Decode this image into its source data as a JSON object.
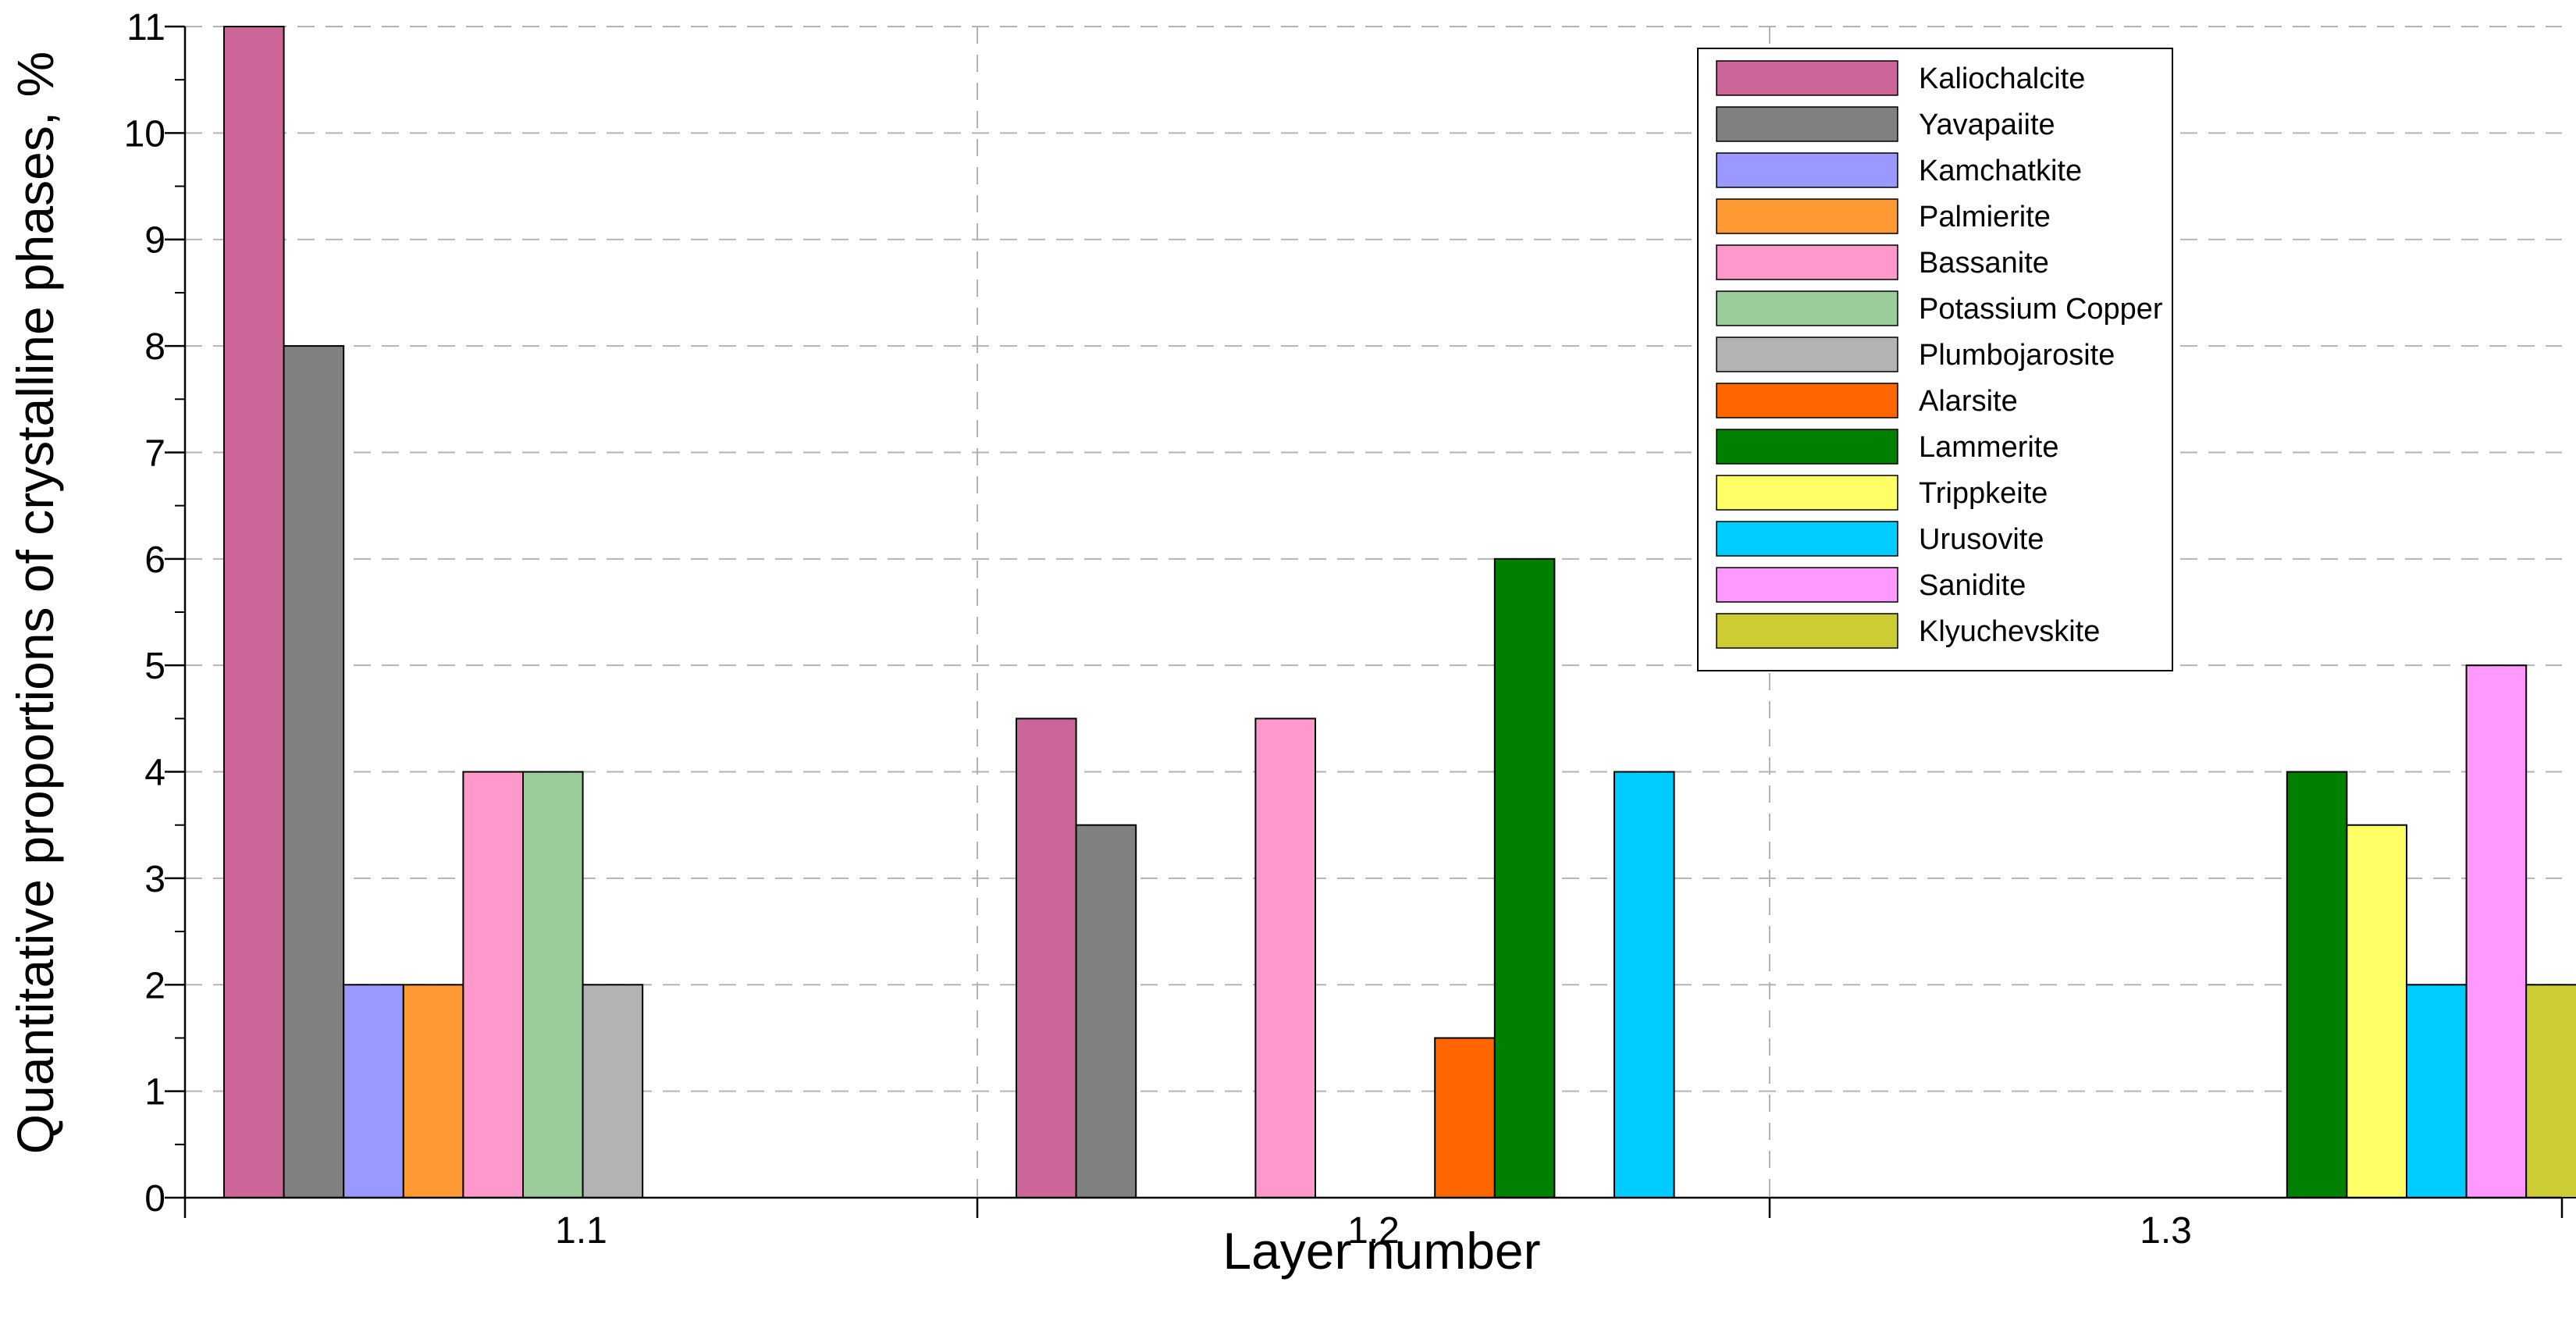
{
  "chart_data": {
    "type": "bar",
    "xlabel": "Layer number",
    "ylabel": "Quantitative proportions of crystalline phases, %",
    "ylim": [
      0,
      11
    ],
    "yticks": [
      0,
      1,
      2,
      3,
      4,
      5,
      6,
      7,
      8,
      9,
      10,
      11
    ],
    "categories": [
      "1.1",
      "1.2",
      "1.3"
    ],
    "grid": "dashed, both axes",
    "legend_position": "top-right",
    "series": [
      {
        "name": "Kaliochalcite",
        "color": "#CC6699",
        "values": [
          11,
          4.5,
          null
        ]
      },
      {
        "name": "Yavapaiite",
        "color": "#808080",
        "values": [
          8,
          3.5,
          null
        ]
      },
      {
        "name": "Kamchatkite",
        "color": "#9999FF",
        "values": [
          2,
          null,
          null
        ]
      },
      {
        "name": "Palmierite",
        "color": "#FF9933",
        "values": [
          2,
          null,
          null
        ]
      },
      {
        "name": "Bassanite",
        "color": "#FF99CC",
        "values": [
          4,
          4.5,
          null
        ]
      },
      {
        "name": "Potassium Copper",
        "color": "#99CC99",
        "values": [
          4,
          null,
          null
        ]
      },
      {
        "name": "Plumbojarosite",
        "color": "#B3B3B3",
        "values": [
          2,
          null,
          null
        ]
      },
      {
        "name": "Alarsite",
        "color": "#FF6600",
        "values": [
          null,
          1.5,
          null
        ]
      },
      {
        "name": "Lammerite",
        "color": "#008000",
        "values": [
          null,
          6,
          4
        ]
      },
      {
        "name": "Trippkeite",
        "color": "#FFFF66",
        "values": [
          null,
          null,
          3.5
        ]
      },
      {
        "name": "Urusovite",
        "color": "#00CCFF",
        "values": [
          null,
          4,
          2
        ]
      },
      {
        "name": "Sanidite",
        "color": "#FF99FF",
        "values": [
          null,
          null,
          5
        ]
      },
      {
        "name": "Klyuchevskite",
        "color": "#CCCC33",
        "values": [
          null,
          null,
          2
        ]
      }
    ]
  }
}
